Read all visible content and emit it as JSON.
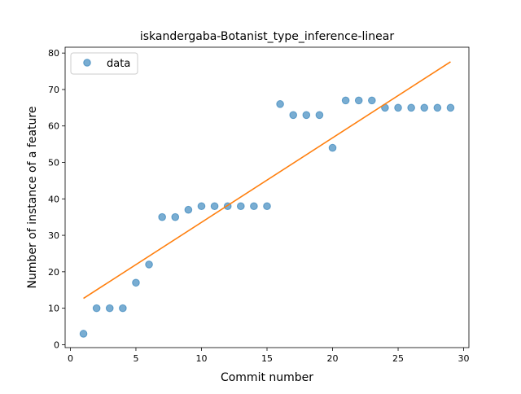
{
  "chart_data": {
    "type": "scatter",
    "title": "iskandergaba-Botanist_type_inference-linear",
    "xlabel": "Commit number",
    "ylabel": "Number of instance of a feature",
    "xlim": [
      -0.4,
      30.4
    ],
    "ylim": [
      -0.8,
      81.6
    ],
    "xticks": [
      0,
      5,
      10,
      15,
      20,
      25,
      30
    ],
    "yticks": [
      0,
      10,
      20,
      30,
      40,
      50,
      60,
      70,
      80
    ],
    "grid": false,
    "legend": {
      "placement": "top-left",
      "entries": [
        "data"
      ]
    },
    "series": [
      {
        "name": "data",
        "kind": "scatter",
        "color": "#1f77b4",
        "x": [
          1,
          2,
          3,
          4,
          5,
          6,
          7,
          8,
          9,
          10,
          11,
          12,
          13,
          14,
          15,
          16,
          17,
          18,
          19,
          20,
          21,
          22,
          23,
          24,
          25,
          26,
          27,
          28,
          29
        ],
        "y": [
          3,
          10,
          10,
          10,
          17,
          22,
          35,
          35,
          37,
          38,
          38,
          38,
          38,
          38,
          38,
          66,
          63,
          63,
          63,
          54,
          67,
          67,
          67,
          65,
          65,
          65,
          65,
          65,
          65
        ]
      },
      {
        "kind": "line",
        "color": "#ff7f0e",
        "x": [
          1,
          29
        ],
        "y": [
          12.7,
          77.6
        ]
      }
    ]
  }
}
